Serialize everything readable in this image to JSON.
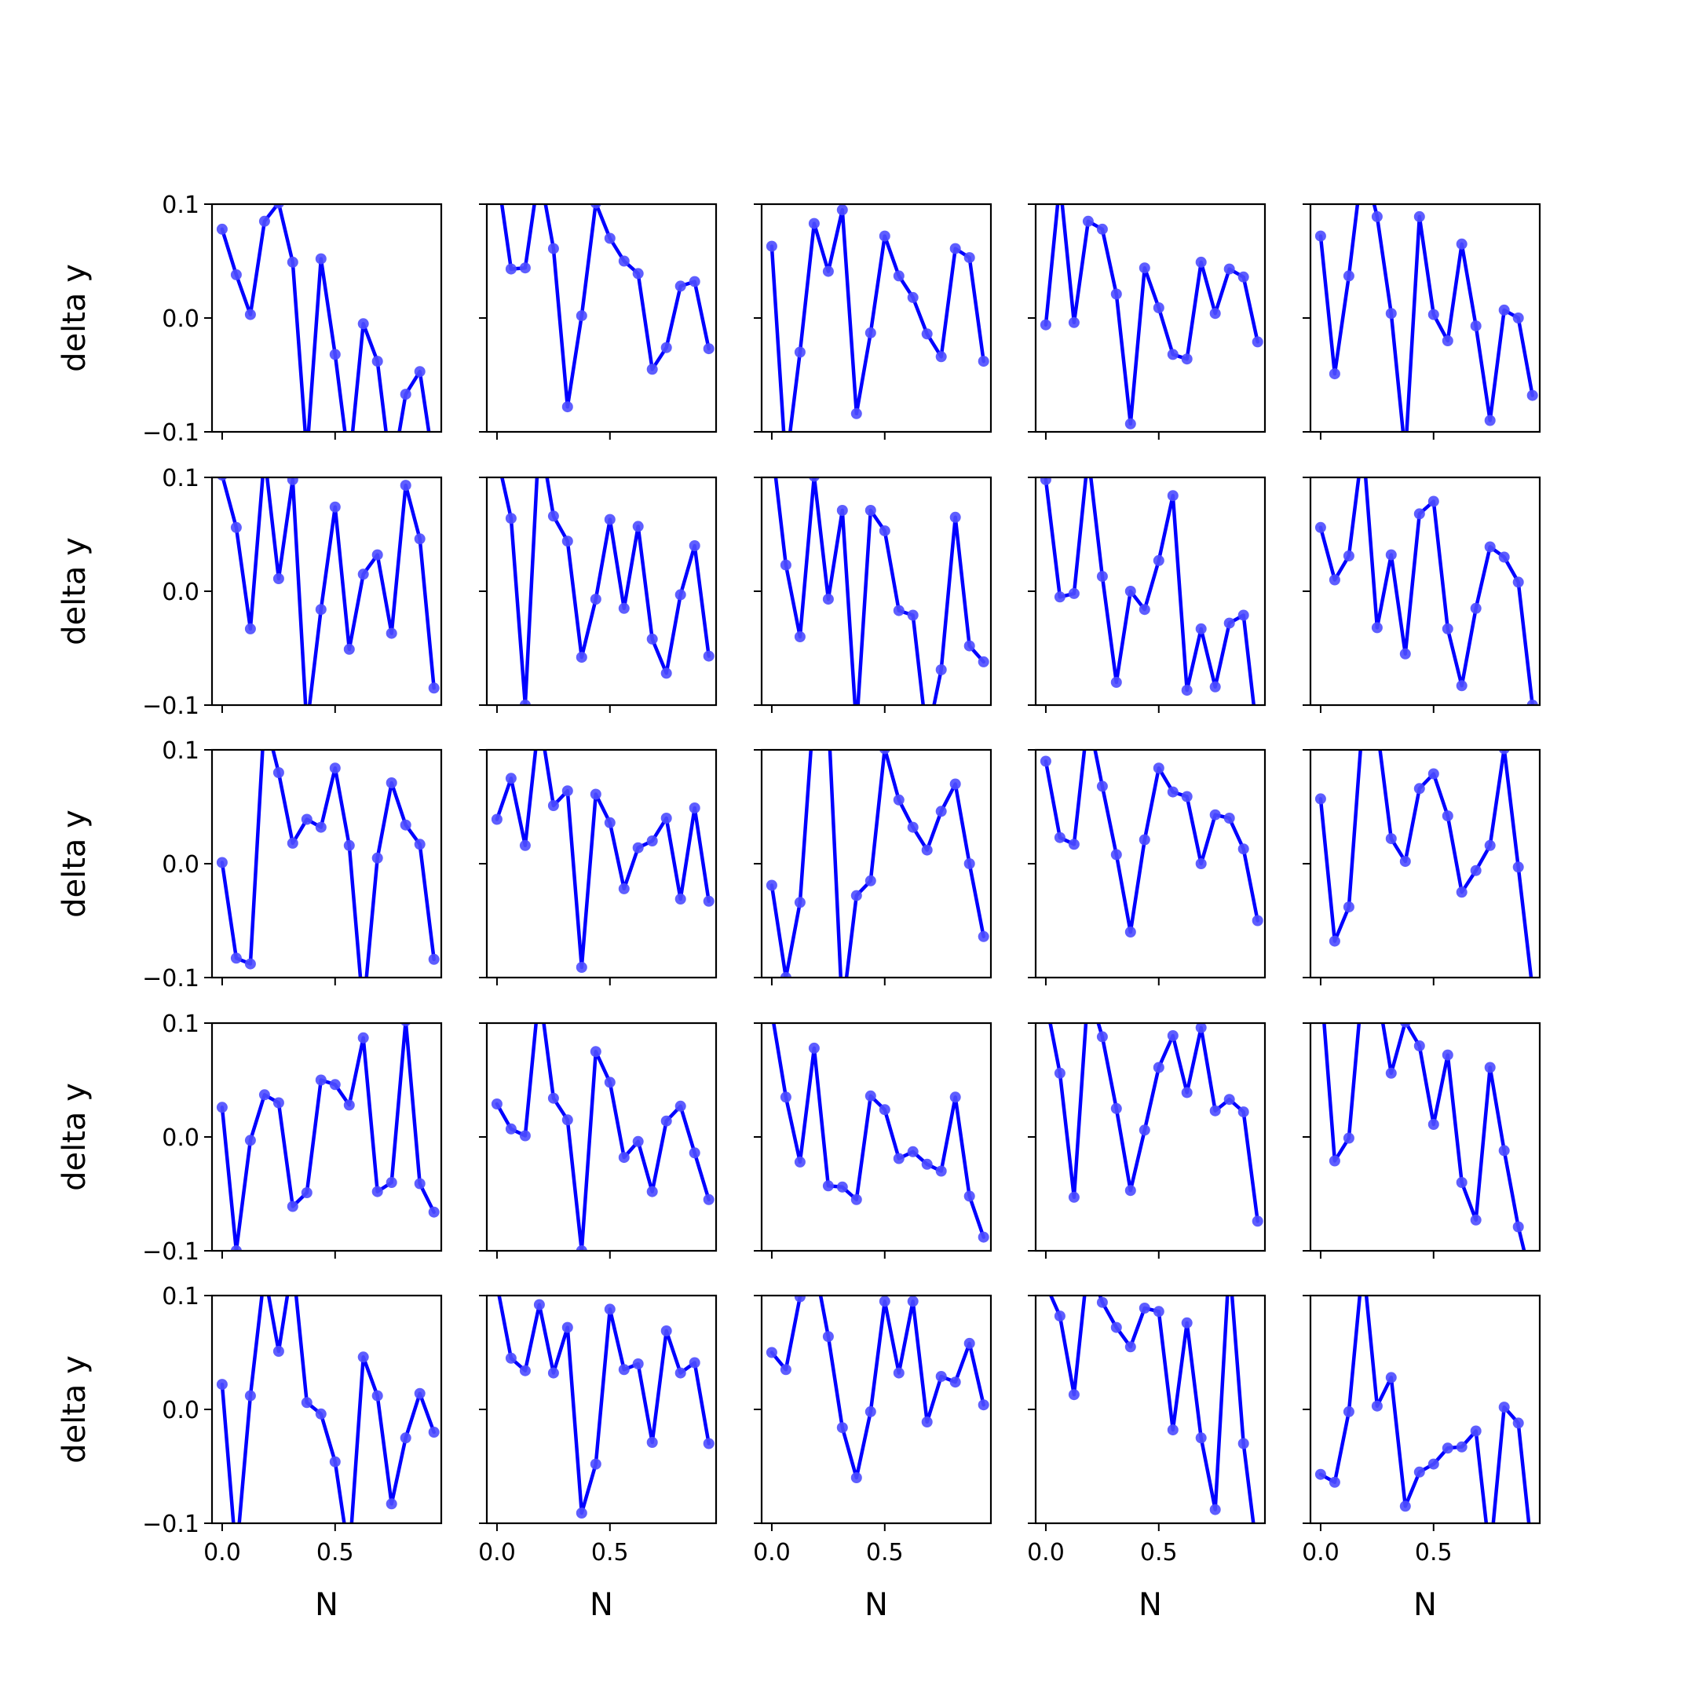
{
  "figure": {
    "grid_rows": 5,
    "grid_cols": 5
  },
  "style": {
    "line_color": "#0000ff",
    "marker_color": "#4d4dff",
    "axis_color": "#000000"
  },
  "chart_data": {
    "type": "line",
    "layout": "5x5 small multiples, shared x and y axes",
    "xlabel": "N",
    "ylabel": "delta y",
    "xlim": [
      -0.045,
      0.97
    ],
    "ylim": [
      -0.1,
      0.1
    ],
    "xticks": [
      0.0,
      0.5
    ],
    "xtick_labels": [
      "0.0",
      "0.5"
    ],
    "yticks": [
      -0.1,
      0.0,
      0.1
    ],
    "ytick_labels": [
      "−0.1",
      "0.0",
      "0.1"
    ],
    "x": [
      0.0,
      0.0625,
      0.125,
      0.1875,
      0.25,
      0.3125,
      0.375,
      0.4375,
      0.5,
      0.5625,
      0.625,
      0.6875,
      0.75,
      0.8125,
      0.875,
      0.9375
    ],
    "panels": [
      [
        {
          "values": [
            0.078,
            0.038,
            0.003,
            0.085,
            0.101,
            0.049,
            -0.12,
            0.052,
            -0.032,
            -0.13,
            -0.005,
            -0.038,
            -0.14,
            -0.067,
            -0.047,
            -0.13
          ]
        },
        {
          "values": [
            0.13,
            0.043,
            0.044,
            0.13,
            0.061,
            -0.078,
            0.002,
            0.101,
            0.07,
            0.05,
            0.039,
            -0.045,
            -0.026,
            0.028,
            0.032,
            -0.027
          ]
        },
        {
          "values": [
            0.063,
            -0.13,
            -0.03,
            0.083,
            0.041,
            0.095,
            -0.084,
            -0.013,
            0.072,
            0.037,
            0.018,
            -0.014,
            -0.034,
            0.061,
            0.053,
            -0.038
          ]
        },
        {
          "values": [
            -0.006,
            0.12,
            -0.004,
            0.085,
            0.078,
            0.021,
            -0.093,
            0.044,
            0.009,
            -0.032,
            -0.036,
            0.049,
            0.004,
            0.043,
            0.036,
            -0.021
          ]
        },
        {
          "values": [
            0.072,
            -0.049,
            0.037,
            0.14,
            0.089,
            0.004,
            -0.12,
            0.089,
            0.003,
            -0.02,
            0.065,
            -0.007,
            -0.09,
            0.007,
            0.0,
            -0.068
          ]
        }
      ],
      [
        {
          "values": [
            0.102,
            0.056,
            -0.033,
            0.12,
            0.011,
            0.098,
            -0.12,
            -0.016,
            0.074,
            -0.051,
            0.015,
            0.032,
            -0.037,
            0.093,
            0.046,
            -0.085
          ]
        },
        {
          "values": [
            0.12,
            0.064,
            -0.1,
            0.14,
            0.066,
            0.044,
            -0.058,
            -0.007,
            0.063,
            -0.015,
            0.057,
            -0.042,
            -0.072,
            -0.003,
            0.04,
            -0.057
          ]
        },
        {
          "values": [
            0.13,
            0.023,
            -0.04,
            0.101,
            -0.007,
            0.071,
            -0.12,
            0.071,
            0.053,
            -0.017,
            -0.021,
            -0.13,
            -0.069,
            0.065,
            -0.048,
            -0.062
          ]
        },
        {
          "values": [
            0.098,
            -0.005,
            -0.002,
            0.12,
            0.013,
            -0.08,
            0.0,
            -0.016,
            0.027,
            0.084,
            -0.087,
            -0.033,
            -0.084,
            -0.028,
            -0.021,
            -0.13
          ]
        },
        {
          "values": [
            0.056,
            0.01,
            0.031,
            0.13,
            -0.032,
            0.032,
            -0.055,
            0.068,
            0.079,
            -0.033,
            -0.083,
            -0.015,
            0.039,
            0.03,
            0.008,
            -0.1
          ]
        }
      ],
      [
        {
          "values": [
            0.001,
            -0.083,
            -0.088,
            0.13,
            0.08,
            0.018,
            0.039,
            0.032,
            0.084,
            0.016,
            -0.13,
            0.005,
            0.071,
            0.034,
            0.017,
            -0.084
          ]
        },
        {
          "values": [
            0.039,
            0.075,
            0.016,
            0.13,
            0.051,
            0.064,
            -0.091,
            0.061,
            0.036,
            -0.022,
            0.014,
            0.02,
            0.04,
            -0.031,
            0.049,
            -0.033
          ]
        },
        {
          "values": [
            -0.019,
            -0.1,
            -0.034,
            0.14,
            0.13,
            -0.13,
            -0.028,
            -0.015,
            0.101,
            0.056,
            0.032,
            0.012,
            0.046,
            0.07,
            0.0,
            -0.064
          ]
        },
        {
          "values": [
            0.09,
            0.023,
            0.017,
            0.13,
            0.068,
            0.008,
            -0.06,
            0.021,
            0.084,
            0.063,
            0.059,
            0.0,
            0.043,
            0.04,
            0.013,
            -0.05
          ]
        },
        {
          "values": [
            0.057,
            -0.068,
            -0.038,
            0.13,
            0.12,
            0.022,
            0.002,
            0.066,
            0.079,
            0.042,
            -0.025,
            -0.006,
            0.016,
            0.101,
            -0.003,
            -0.11
          ]
        }
      ],
      [
        {
          "values": [
            0.026,
            -0.1,
            -0.003,
            0.037,
            0.03,
            -0.061,
            -0.049,
            0.05,
            0.046,
            0.028,
            0.087,
            -0.048,
            -0.04,
            0.102,
            -0.041,
            -0.066
          ]
        },
        {
          "values": [
            0.029,
            0.007,
            0.001,
            0.13,
            0.034,
            0.015,
            -0.1,
            0.075,
            0.048,
            -0.018,
            -0.004,
            -0.048,
            0.014,
            0.027,
            -0.014,
            -0.055
          ]
        },
        {
          "values": [
            0.11,
            0.035,
            -0.022,
            0.078,
            -0.043,
            -0.044,
            -0.055,
            0.036,
            0.024,
            -0.019,
            -0.013,
            -0.024,
            -0.03,
            0.035,
            -0.052,
            -0.088
          ]
        },
        {
          "values": [
            0.12,
            0.056,
            -0.053,
            0.13,
            0.088,
            0.025,
            -0.047,
            0.006,
            0.061,
            0.089,
            0.039,
            0.096,
            0.023,
            0.033,
            0.022,
            -0.074
          ]
        },
        {
          "values": [
            0.14,
            -0.021,
            -0.001,
            0.14,
            0.13,
            0.056,
            0.101,
            0.08,
            0.011,
            0.072,
            -0.04,
            -0.073,
            0.061,
            -0.012,
            -0.079,
            -0.13
          ]
        }
      ],
      [
        {
          "values": [
            0.022,
            -0.13,
            0.012,
            0.12,
            0.051,
            0.13,
            0.006,
            -0.004,
            -0.046,
            -0.13,
            0.046,
            0.012,
            -0.083,
            -0.025,
            0.014,
            -0.02
          ]
        },
        {
          "values": [
            0.11,
            0.045,
            0.034,
            0.092,
            0.032,
            0.072,
            -0.091,
            -0.048,
            0.088,
            0.035,
            0.04,
            -0.029,
            0.069,
            0.032,
            0.041,
            -0.03
          ]
        },
        {
          "values": [
            0.05,
            0.035,
            0.099,
            0.13,
            0.064,
            -0.016,
            -0.06,
            -0.002,
            0.095,
            0.032,
            0.095,
            -0.011,
            0.029,
            0.024,
            0.058,
            0.004
          ]
        },
        {
          "values": [
            0.11,
            0.082,
            0.013,
            0.13,
            0.094,
            0.072,
            0.055,
            0.089,
            0.086,
            -0.018,
            0.076,
            -0.025,
            -0.088,
            0.13,
            -0.03,
            -0.13
          ]
        },
        {
          "values": [
            -0.057,
            -0.064,
            -0.002,
            0.13,
            0.003,
            0.028,
            -0.085,
            -0.055,
            -0.048,
            -0.034,
            -0.033,
            -0.019,
            -0.13,
            0.002,
            -0.012,
            -0.13
          ]
        }
      ]
    ]
  }
}
